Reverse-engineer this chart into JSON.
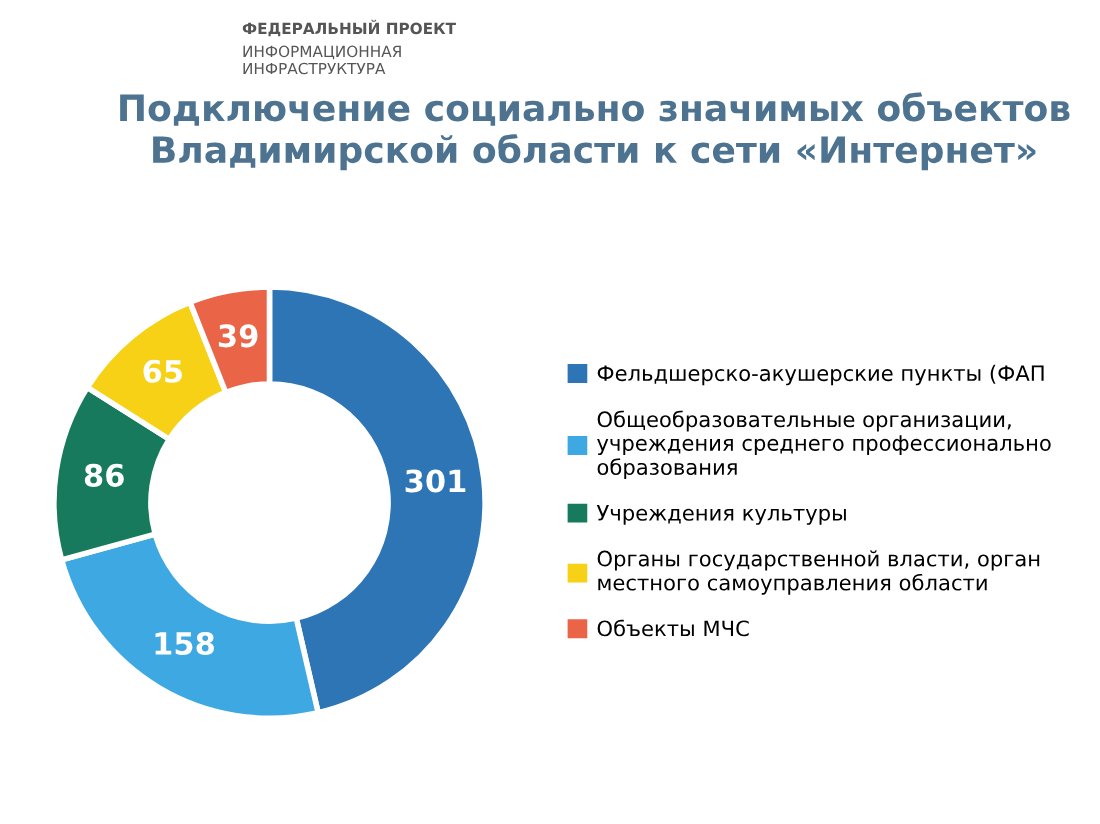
{
  "chart_data": {
    "type": "donut",
    "title": "Подключение социально значимых объектов\nВладимирской области к сети «Интернет»",
    "categories": [
      "Фельдшерско-акушерские пункты (ФАП",
      "Общеобразовательные организации,\nучреждения среднего профессионально\nобразования",
      "Учреждения культуры",
      "Органы государственной власти, орган\nместного самоуправления области",
      "Объекты МЧС"
    ],
    "values": [
      301,
      158,
      86,
      65,
      39
    ],
    "colors": [
      "#2e75b6",
      "#3ea8e2",
      "#187a5c",
      "#f6d116",
      "#ea6547"
    ],
    "data_labels": true,
    "legend": "right",
    "annotations": [
      "ФЕДЕРАЛЬНЫЙ ПРОЕКТ",
      "ИНФОРМАЦИОННАЯ\nИНФРАСТРУКТУРА"
    ]
  }
}
